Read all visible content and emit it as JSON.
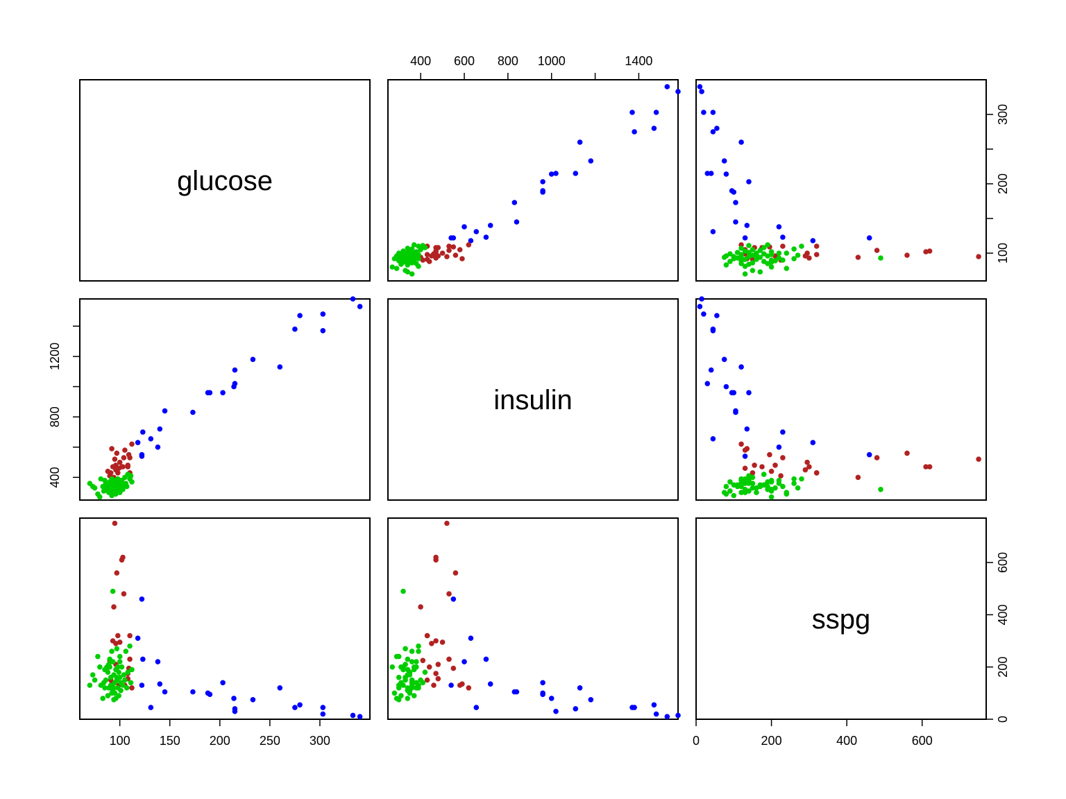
{
  "chart_data": {
    "type": "scatter_matrix",
    "variables": [
      "glucose",
      "insulin",
      "sspg"
    ],
    "ranges": {
      "glucose": [
        60,
        350
      ],
      "insulin": [
        250,
        1580
      ],
      "sspg": [
        0,
        770
      ]
    },
    "ticks": {
      "glucose": [
        100,
        150,
        200,
        250,
        300
      ],
      "insulin": [
        400,
        600,
        800,
        1000,
        1200,
        1400
      ],
      "sspg": [
        0,
        200,
        400,
        600
      ]
    },
    "labels": {
      "glucose_bottom": [
        "100",
        "150",
        "200",
        "250",
        "300"
      ],
      "insulin_top": [
        "400",
        "600",
        "800",
        "1000",
        "",
        "1400"
      ],
      "insulin_left": [
        "400",
        "800",
        "1200"
      ],
      "glucose_right": [
        "100",
        "200",
        "300"
      ],
      "sspg_bottom": [
        "0",
        "200",
        "400",
        "600"
      ],
      "sspg_right": [
        "0",
        "200",
        "400",
        "600"
      ]
    },
    "groups": [
      {
        "color": "#0000ff",
        "points": [
          [
            340,
            1530,
            10
          ],
          [
            333,
            1580,
            15
          ],
          [
            303,
            1370,
            45
          ],
          [
            303,
            1480,
            20
          ],
          [
            280,
            1470,
            55
          ],
          [
            275,
            1380,
            45
          ],
          [
            260,
            1130,
            120
          ],
          [
            233,
            1180,
            75
          ],
          [
            215,
            1020,
            30
          ],
          [
            215,
            1110,
            40
          ],
          [
            214,
            1000,
            80
          ],
          [
            203,
            960,
            140
          ],
          [
            190,
            960,
            95
          ],
          [
            188,
            960,
            100
          ],
          [
            173,
            830,
            105
          ],
          [
            145,
            840,
            105
          ],
          [
            140,
            720,
            135
          ],
          [
            138,
            600,
            220
          ],
          [
            131,
            655,
            45
          ],
          [
            123,
            700,
            230
          ],
          [
            122,
            550,
            460
          ],
          [
            122,
            540,
            130
          ],
          [
            118,
            630,
            310
          ]
        ]
      },
      {
        "color": "#b22222",
        "points": [
          [
            112,
            620,
            120
          ],
          [
            110,
            530,
            230
          ],
          [
            109,
            550,
            195
          ],
          [
            108,
            470,
            175
          ],
          [
            105,
            580,
            130
          ],
          [
            104,
            530,
            480
          ],
          [
            103,
            470,
            620
          ],
          [
            102,
            470,
            610
          ],
          [
            100,
            500,
            295
          ],
          [
            99,
            460,
            130
          ],
          [
            98,
            430,
            320
          ],
          [
            97,
            560,
            560
          ],
          [
            96,
            480,
            210
          ],
          [
            95,
            520,
            750
          ],
          [
            94,
            400,
            430
          ],
          [
            93,
            470,
            300
          ],
          [
            92,
            590,
            135
          ],
          [
            91,
            430,
            150
          ],
          [
            90,
            410,
            225
          ],
          [
            88,
            440,
            200
          ],
          [
            108,
            480,
            155
          ],
          [
            96,
            450,
            290
          ],
          [
            110,
            430,
            320
          ]
        ]
      },
      {
        "color": "#00cd00",
        "points": [
          [
            70,
            360,
            130
          ],
          [
            73,
            340,
            170
          ],
          [
            75,
            330,
            150
          ],
          [
            78,
            290,
            240
          ],
          [
            80,
            270,
            200
          ],
          [
            81,
            390,
            130
          ],
          [
            83,
            340,
            80
          ],
          [
            84,
            310,
            140
          ],
          [
            85,
            340,
            190
          ],
          [
            85,
            380,
            120
          ],
          [
            86,
            360,
            150
          ],
          [
            87,
            320,
            200
          ],
          [
            88,
            350,
            180
          ],
          [
            88,
            310,
            90
          ],
          [
            89,
            300,
            120
          ],
          [
            90,
            340,
            230
          ],
          [
            90,
            370,
            200
          ],
          [
            91,
            330,
            160
          ],
          [
            91,
            300,
            130
          ],
          [
            92,
            390,
            260
          ],
          [
            92,
            280,
            100
          ],
          [
            93,
            360,
            220
          ],
          [
            93,
            320,
            490
          ],
          [
            94,
            340,
            170
          ],
          [
            94,
            300,
            75
          ],
          [
            95,
            380,
            140
          ],
          [
            95,
            350,
            100
          ],
          [
            96,
            320,
            190
          ],
          [
            96,
            290,
            80
          ],
          [
            97,
            360,
            150
          ],
          [
            97,
            330,
            270
          ],
          [
            98,
            390,
            120
          ],
          [
            98,
            310,
            200
          ],
          [
            99,
            350,
            180
          ],
          [
            99,
            370,
            90
          ],
          [
            100,
            330,
            160
          ],
          [
            100,
            300,
            240
          ],
          [
            101,
            360,
            140
          ],
          [
            101,
            340,
            110
          ],
          [
            102,
            380,
            200
          ],
          [
            103,
            320,
            130
          ],
          [
            104,
            350,
            170
          ],
          [
            105,
            400,
            150
          ],
          [
            106,
            360,
            260
          ],
          [
            107,
            340,
            120
          ],
          [
            108,
            420,
            180
          ],
          [
            110,
            390,
            280
          ],
          [
            111,
            410,
            140
          ],
          [
            112,
            370,
            190
          ],
          [
            89,
            330,
            210
          ],
          [
            94,
            360,
            120
          ],
          [
            97,
            300,
            160
          ],
          [
            100,
            380,
            220
          ],
          [
            93,
            350,
            110
          ]
        ]
      }
    ]
  }
}
